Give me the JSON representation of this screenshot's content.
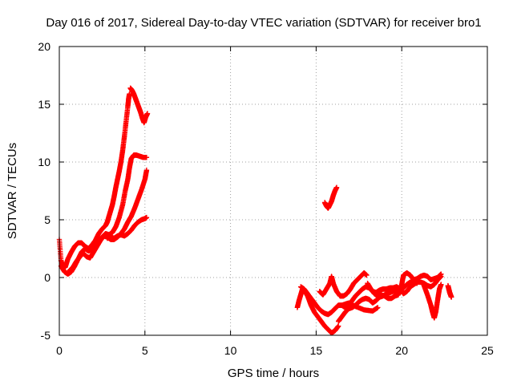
{
  "chart_data": {
    "type": "scatter",
    "title": "Day 016 of 2017, Sidereal Day-to-day VTEC variation (SDTVAR) for receiver bro1",
    "xlabel": "GPS time / hours",
    "ylabel": "SDTVAR / TECUs",
    "xlim": [
      0,
      25
    ],
    "ylim": [
      -5,
      20
    ],
    "xticks": [
      0,
      5,
      10,
      15,
      20,
      25
    ],
    "yticks": [
      -5,
      0,
      5,
      10,
      15,
      20
    ],
    "grid": true,
    "marker": "plus",
    "color": "#ff0000",
    "series": [
      {
        "points": [
          [
            0.0,
            3.3
          ],
          [
            0.1,
            1.5
          ],
          [
            0.2,
            0.8
          ],
          [
            0.35,
            0.9
          ],
          [
            0.5,
            1.6
          ],
          [
            0.7,
            2.2
          ],
          [
            0.9,
            2.7
          ],
          [
            1.1,
            3.0
          ],
          [
            1.3,
            3.0
          ],
          [
            1.5,
            2.7
          ],
          [
            1.7,
            2.5
          ],
          [
            1.9,
            2.8
          ],
          [
            2.1,
            3.2
          ],
          [
            2.3,
            3.8
          ],
          [
            2.5,
            4.2
          ],
          [
            2.7,
            4.5
          ],
          [
            2.8,
            4.8
          ],
          [
            2.9,
            5.3
          ],
          [
            3.0,
            5.8
          ],
          [
            3.1,
            6.3
          ],
          [
            3.2,
            7.0
          ],
          [
            3.3,
            7.8
          ],
          [
            3.4,
            8.5
          ],
          [
            3.5,
            9.2
          ],
          [
            3.6,
            10.0
          ],
          [
            3.7,
            11.0
          ],
          [
            3.8,
            12.2
          ],
          [
            3.9,
            13.5
          ],
          [
            4.0,
            14.8
          ],
          [
            4.05,
            15.5
          ],
          [
            4.1,
            15.9
          ]
        ]
      },
      {
        "points": [
          [
            4.15,
            16.4
          ],
          [
            4.25,
            16.2
          ],
          [
            4.35,
            15.9
          ],
          [
            4.45,
            15.5
          ],
          [
            4.55,
            15.1
          ],
          [
            4.65,
            14.7
          ],
          [
            4.75,
            14.3
          ],
          [
            4.85,
            13.8
          ],
          [
            4.95,
            13.4
          ],
          [
            5.05,
            13.9
          ],
          [
            5.15,
            14.2
          ]
        ]
      },
      {
        "points": [
          [
            0.1,
            1.0
          ],
          [
            0.3,
            0.5
          ],
          [
            0.5,
            0.3
          ],
          [
            0.7,
            0.5
          ],
          [
            0.9,
            1.0
          ],
          [
            1.1,
            1.6
          ],
          [
            1.3,
            2.2
          ],
          [
            1.5,
            2.5
          ],
          [
            1.7,
            2.3
          ],
          [
            1.9,
            2.4
          ],
          [
            2.1,
            2.7
          ],
          [
            2.3,
            3.1
          ],
          [
            2.5,
            3.5
          ],
          [
            2.7,
            3.8
          ],
          [
            2.9,
            3.7
          ],
          [
            3.1,
            3.9
          ],
          [
            3.3,
            4.4
          ],
          [
            3.5,
            5.2
          ],
          [
            3.7,
            6.3
          ],
          [
            3.85,
            7.5
          ],
          [
            4.0,
            8.5
          ],
          [
            4.1,
            9.5
          ],
          [
            4.2,
            10.3
          ],
          [
            4.35,
            10.6
          ],
          [
            4.5,
            10.6
          ],
          [
            4.7,
            10.5
          ],
          [
            4.9,
            10.4
          ],
          [
            5.1,
            10.4
          ]
        ]
      },
      {
        "points": [
          [
            0.6,
            0.6
          ],
          [
            0.8,
            0.9
          ],
          [
            1.0,
            1.4
          ],
          [
            1.2,
            1.8
          ],
          [
            1.4,
            2.1
          ],
          [
            1.6,
            1.8
          ],
          [
            1.8,
            1.7
          ],
          [
            2.0,
            2.2
          ],
          [
            2.2,
            2.7
          ],
          [
            2.4,
            3.2
          ],
          [
            2.6,
            3.6
          ],
          [
            2.8,
            3.5
          ],
          [
            3.0,
            3.3
          ],
          [
            3.2,
            3.3
          ],
          [
            3.4,
            3.5
          ],
          [
            3.6,
            3.8
          ],
          [
            3.8,
            4.2
          ],
          [
            4.0,
            4.8
          ],
          [
            4.2,
            5.3
          ],
          [
            4.4,
            6.0
          ],
          [
            4.6,
            6.8
          ],
          [
            4.8,
            7.6
          ],
          [
            5.0,
            8.5
          ],
          [
            5.1,
            9.3
          ]
        ]
      },
      {
        "points": [
          [
            2.8,
            3.4
          ],
          [
            3.0,
            3.5
          ],
          [
            3.2,
            3.4
          ],
          [
            3.4,
            3.6
          ],
          [
            3.6,
            3.7
          ],
          [
            3.8,
            3.6
          ],
          [
            4.0,
            3.8
          ],
          [
            4.2,
            4.1
          ],
          [
            4.4,
            4.5
          ],
          [
            4.6,
            4.8
          ],
          [
            4.8,
            5.0
          ],
          [
            5.0,
            5.1
          ],
          [
            5.1,
            5.2
          ]
        ]
      },
      {
        "points": [
          [
            15.5,
            6.5
          ],
          [
            15.6,
            6.2
          ],
          [
            15.7,
            6.0
          ],
          [
            15.8,
            6.3
          ],
          [
            15.9,
            6.6
          ],
          [
            16.0,
            7.1
          ],
          [
            16.1,
            7.5
          ],
          [
            16.2,
            7.8
          ]
        ]
      },
      {
        "points": [
          [
            13.9,
            -2.6
          ],
          [
            14.0,
            -2.0
          ],
          [
            14.1,
            -1.5
          ],
          [
            14.2,
            -1.0
          ],
          [
            14.35,
            -1.2
          ],
          [
            14.5,
            -1.6
          ],
          [
            14.7,
            -2.4
          ],
          [
            14.9,
            -3.0
          ],
          [
            15.1,
            -3.4
          ],
          [
            15.3,
            -3.8
          ],
          [
            15.5,
            -4.2
          ],
          [
            15.7,
            -4.5
          ],
          [
            15.9,
            -4.8
          ],
          [
            16.1,
            -4.6
          ],
          [
            16.3,
            -4.2
          ]
        ]
      },
      {
        "points": [
          [
            14.1,
            -0.8
          ],
          [
            14.3,
            -1.0
          ],
          [
            14.5,
            -1.4
          ],
          [
            14.7,
            -1.8
          ],
          [
            14.9,
            -2.2
          ],
          [
            15.1,
            -2.6
          ],
          [
            15.3,
            -2.9
          ],
          [
            15.5,
            -3.1
          ],
          [
            15.7,
            -3.2
          ],
          [
            15.9,
            -3.0
          ],
          [
            16.1,
            -2.7
          ],
          [
            16.3,
            -2.4
          ],
          [
            16.5,
            -2.4
          ],
          [
            16.7,
            -2.6
          ],
          [
            16.9,
            -2.4
          ],
          [
            17.1,
            -2.0
          ],
          [
            17.3,
            -1.6
          ],
          [
            17.5,
            -1.3
          ],
          [
            17.7,
            -1.0
          ],
          [
            17.9,
            -0.8
          ],
          [
            18.1,
            -0.9
          ],
          [
            18.3,
            -1.2
          ],
          [
            18.5,
            -1.3
          ],
          [
            18.7,
            -1.1
          ],
          [
            18.9,
            -1.0
          ],
          [
            19.1,
            -1.0
          ],
          [
            19.3,
            -0.9
          ],
          [
            19.5,
            -0.9
          ],
          [
            19.7,
            -0.8
          ],
          [
            19.9,
            -1.0
          ],
          [
            20.1,
            -1.4
          ],
          [
            20.3,
            -1.2
          ],
          [
            20.5,
            -0.8
          ],
          [
            20.7,
            -0.6
          ],
          [
            20.9,
            -0.4
          ],
          [
            21.1,
            -0.4
          ],
          [
            21.3,
            -0.5
          ],
          [
            21.5,
            -0.7
          ],
          [
            21.7,
            -0.8
          ],
          [
            21.9,
            -0.6
          ],
          [
            22.1,
            -0.2
          ],
          [
            22.3,
            0.1
          ]
        ]
      },
      {
        "points": [
          [
            15.2,
            -1.2
          ],
          [
            15.4,
            -1.5
          ],
          [
            15.6,
            -1.0
          ],
          [
            15.8,
            -0.5
          ],
          [
            15.9,
            0.1
          ],
          [
            16.0,
            -0.5
          ],
          [
            16.2,
            -1.2
          ],
          [
            16.4,
            -1.6
          ],
          [
            16.6,
            -1.6
          ],
          [
            16.8,
            -1.4
          ],
          [
            17.0,
            -1.0
          ],
          [
            17.2,
            -0.5
          ],
          [
            17.4,
            -0.2
          ],
          [
            17.6,
            0.1
          ],
          [
            17.8,
            0.4
          ],
          [
            17.95,
            0.2
          ]
        ]
      },
      {
        "points": [
          [
            16.3,
            -3.8
          ],
          [
            16.5,
            -3.4
          ],
          [
            16.7,
            -3.0
          ],
          [
            16.9,
            -2.7
          ],
          [
            17.1,
            -2.6
          ],
          [
            17.3,
            -2.4
          ],
          [
            17.5,
            -2.1
          ],
          [
            17.7,
            -1.9
          ],
          [
            17.9,
            -1.8
          ],
          [
            18.1,
            -1.9
          ],
          [
            18.3,
            -2.2
          ],
          [
            18.5,
            -2.0
          ],
          [
            18.7,
            -1.7
          ],
          [
            18.9,
            -1.6
          ],
          [
            19.1,
            -1.4
          ],
          [
            19.3,
            -1.3
          ],
          [
            19.5,
            -1.2
          ],
          [
            19.7,
            -1.1
          ],
          [
            19.9,
            -1.1
          ],
          [
            20.1,
            -0.9
          ],
          [
            20.3,
            -0.6
          ],
          [
            20.5,
            -0.4
          ],
          [
            20.7,
            -0.4
          ],
          [
            20.9,
            -0.5
          ]
        ]
      },
      {
        "points": [
          [
            18.0,
            -0.5
          ],
          [
            18.2,
            -1.0
          ],
          [
            18.4,
            -1.4
          ],
          [
            18.6,
            -1.6
          ],
          [
            18.8,
            -1.5
          ],
          [
            19.0,
            -1.6
          ],
          [
            19.2,
            -1.8
          ],
          [
            19.4,
            -1.8
          ],
          [
            19.6,
            -1.6
          ],
          [
            19.8,
            -1.5
          ],
          [
            20.0,
            -0.6
          ],
          [
            20.1,
            0.2
          ],
          [
            20.3,
            0.4
          ],
          [
            20.5,
            0.2
          ],
          [
            20.7,
            -0.2
          ],
          [
            20.9,
            -0.1
          ],
          [
            21.1,
            0.1
          ],
          [
            21.3,
            0.2
          ],
          [
            21.5,
            0.1
          ],
          [
            21.7,
            -0.2
          ],
          [
            21.9,
            -0.1
          ],
          [
            22.1,
            0.0
          ],
          [
            22.3,
            0.3
          ]
        ]
      },
      {
        "points": [
          [
            21.3,
            -0.7
          ],
          [
            21.5,
            -1.5
          ],
          [
            21.7,
            -2.4
          ],
          [
            21.8,
            -3.0
          ],
          [
            21.9,
            -3.5
          ],
          [
            22.0,
            -2.9
          ],
          [
            22.1,
            -1.9
          ],
          [
            22.2,
            -1.0
          ],
          [
            22.3,
            -0.6
          ]
        ]
      },
      {
        "points": [
          [
            22.7,
            -0.7
          ],
          [
            22.75,
            -1.0
          ],
          [
            22.8,
            -1.3
          ],
          [
            22.85,
            -1.5
          ],
          [
            22.9,
            -1.7
          ]
        ]
      },
      {
        "points": [
          [
            16.5,
            -2.4
          ],
          [
            16.9,
            -2.2
          ],
          [
            17.3,
            -2.5
          ],
          [
            17.8,
            -2.8
          ],
          [
            18.3,
            -2.9
          ],
          [
            18.6,
            -2.6
          ]
        ]
      }
    ]
  }
}
